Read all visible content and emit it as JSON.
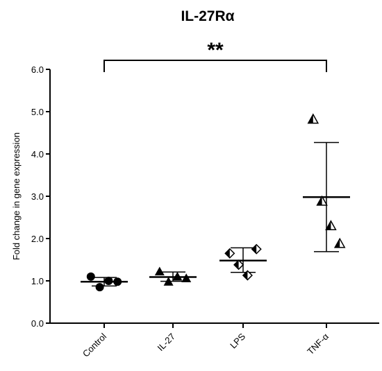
{
  "chart_data": {
    "type": "scatter",
    "title": "IL-27Rα",
    "xlabel": "",
    "ylabel": "Fold change in gene expression",
    "ylim": [
      0.0,
      6.0
    ],
    "yticks": [
      "0.0",
      "1.0",
      "2.0",
      "3.0",
      "4.0",
      "5.0",
      "6.0"
    ],
    "categories": [
      "Control",
      "IL-27",
      "LPS",
      "TNF-α"
    ],
    "groups": [
      {
        "category": "Control",
        "marker": "circle",
        "points": [
          1.1,
          0.85,
          1.0,
          0.98
        ],
        "mean": 0.98,
        "sd_low": 0.88,
        "sd_high": 1.08
      },
      {
        "category": "IL-27",
        "marker": "triangle",
        "points": [
          1.22,
          0.98,
          1.1,
          1.06
        ],
        "mean": 1.09,
        "sd_low": 0.99,
        "sd_high": 1.21
      },
      {
        "category": "LPS",
        "marker": "diamond-half",
        "points": [
          1.65,
          1.38,
          1.13,
          1.75
        ],
        "mean": 1.48,
        "sd_low": 1.2,
        "sd_high": 1.78
      },
      {
        "category": "TNF-α",
        "marker": "triangle-half",
        "points": [
          4.82,
          2.88,
          2.3,
          1.88
        ],
        "mean": 2.98,
        "sd_low": 1.69,
        "sd_high": 4.27
      }
    ],
    "significance": {
      "from": "Control",
      "to": "TNF-α",
      "label": "**"
    },
    "grid": false
  }
}
